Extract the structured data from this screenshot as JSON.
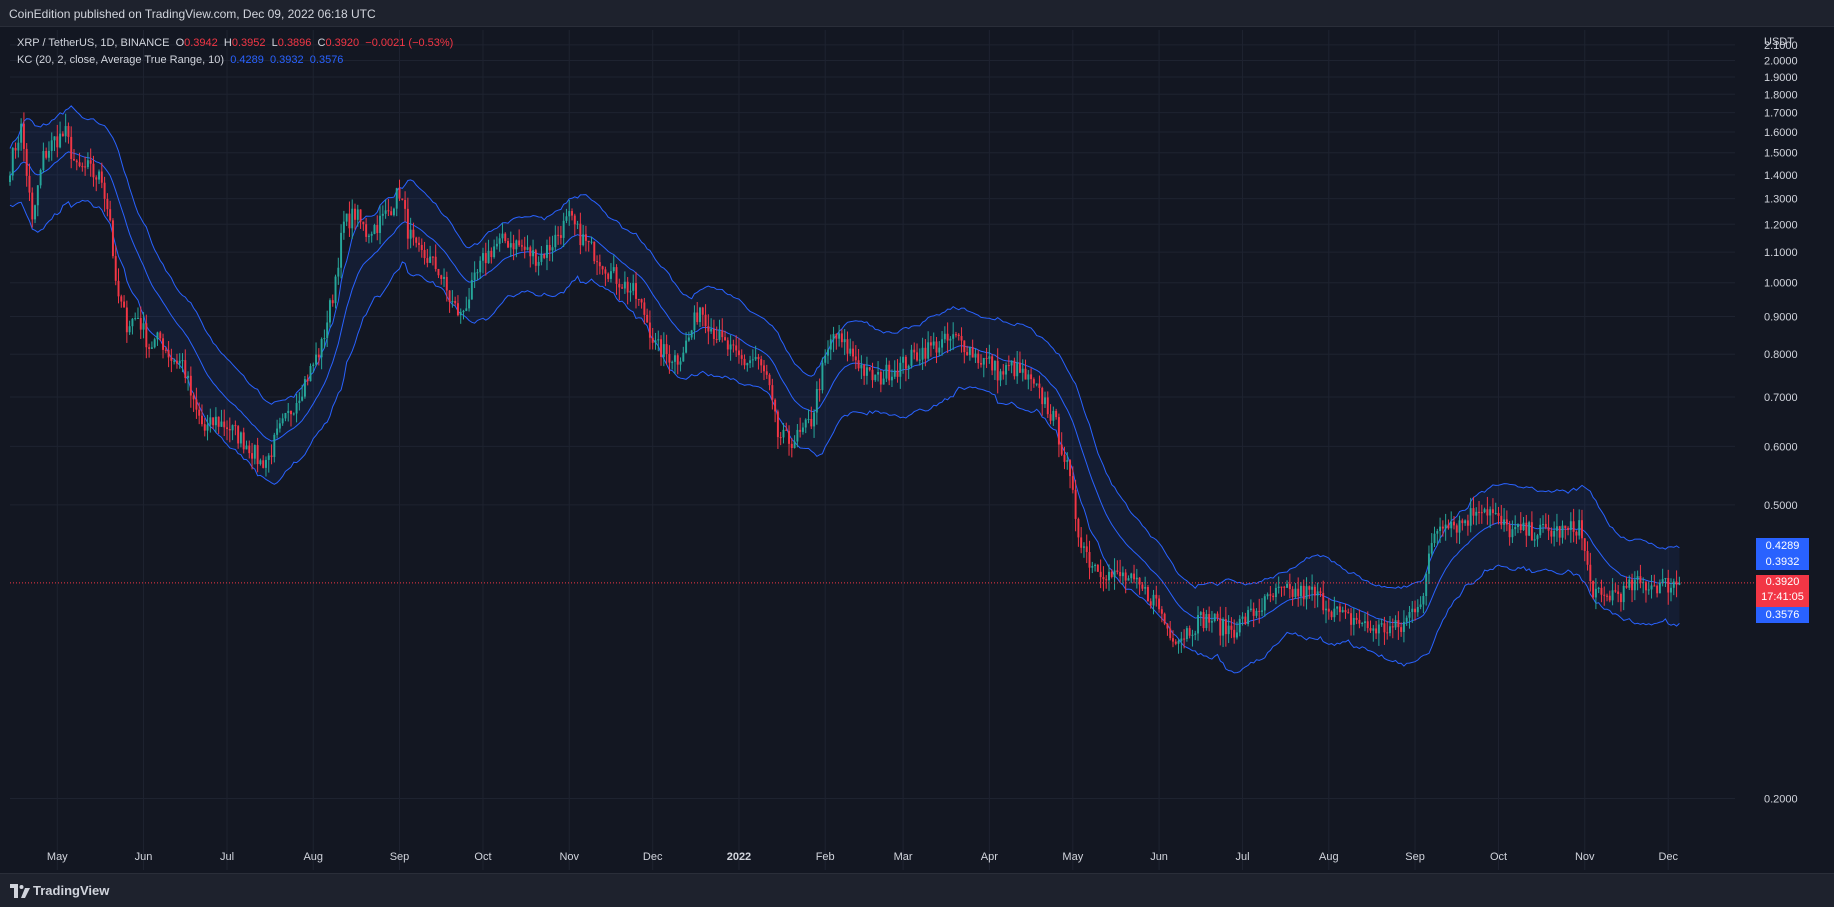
{
  "header": {
    "publisher": "CoinEdition published on TradingView.com, Dec 09, 2022 06:18 UTC"
  },
  "legend": {
    "symbol": "XRP / TetherUS, 1D, BINANCE",
    "o_label": "O",
    "o_value": "0.3942",
    "h_label": "H",
    "h_value": "0.3952",
    "l_label": "L",
    "l_value": "0.3896",
    "c_label": "C",
    "c_value": "0.3920",
    "change": "−0.0021 (−0.53%)",
    "indicator": "KC (20, 2, close, Average True Range, 10)",
    "kc_upper": "0.4289",
    "kc_basis": "0.3932",
    "kc_lower": "0.3576"
  },
  "price_badges": {
    "upper": "0.4289",
    "basis": "0.3932",
    "last": "0.3920",
    "countdown": "17:41:05",
    "lower": "0.3576"
  },
  "footer": {
    "brand": "TradingView"
  },
  "colors": {
    "up": "#26a69a",
    "down": "#f23645",
    "band": "#2962ff",
    "background": "#131722",
    "grid": "#1e2330"
  },
  "chart_data": {
    "type": "candlestick",
    "symbol": "XRP / TetherUS",
    "timeframe": "1D",
    "exchange": "BINANCE",
    "currency_label": "USDT",
    "y_ticks": [
      "0.2000",
      "0.5000",
      "0.6000",
      "0.7000",
      "0.8000",
      "0.9000",
      "1.0000",
      "1.1000",
      "1.2000",
      "1.3000",
      "1.4000",
      "1.5000",
      "1.6000",
      "1.7000",
      "1.8000",
      "1.9000",
      "2.0000",
      "2.1000"
    ],
    "y_tick_values": [
      0.2,
      0.5,
      0.6,
      0.7,
      0.8,
      0.9,
      1.0,
      1.1,
      1.2,
      1.3,
      1.4,
      1.5,
      1.6,
      1.7,
      1.8,
      1.9,
      2.0,
      2.1
    ],
    "ylim": [
      0.16,
      2.2
    ],
    "x_labels": [
      "May",
      "Jun",
      "Jul",
      "Aug",
      "Sep",
      "Oct",
      "Nov",
      "Dec",
      "2022",
      "Feb",
      "Mar",
      "Apr",
      "May",
      "Jun",
      "Jul",
      "Aug",
      "Sep",
      "Oct",
      "Nov",
      "Dec"
    ],
    "x_label_days": [
      17,
      48,
      78,
      109,
      140,
      170,
      201,
      231,
      262,
      293,
      321,
      352,
      382,
      413,
      443,
      474,
      505,
      535,
      566,
      596
    ],
    "total_days": 620,
    "last_price": 0.392,
    "anchors": [
      [
        0,
        1.44
      ],
      [
        4,
        1.62
      ],
      [
        8,
        1.2
      ],
      [
        12,
        1.48
      ],
      [
        16,
        1.56
      ],
      [
        20,
        1.59
      ],
      [
        24,
        1.42
      ],
      [
        28,
        1.43
      ],
      [
        30,
        1.4
      ],
      [
        33,
        1.38
      ],
      [
        36,
        1.22
      ],
      [
        38,
        0.98
      ],
      [
        42,
        0.88
      ],
      [
        46,
        0.9
      ],
      [
        50,
        0.82
      ],
      [
        54,
        0.84
      ],
      [
        58,
        0.79
      ],
      [
        62,
        0.78
      ],
      [
        66,
        0.68
      ],
      [
        70,
        0.63
      ],
      [
        74,
        0.65
      ],
      [
        78,
        0.64
      ],
      [
        82,
        0.62
      ],
      [
        86,
        0.6
      ],
      [
        90,
        0.57
      ],
      [
        93,
        0.58
      ],
      [
        96,
        0.62
      ],
      [
        100,
        0.66
      ],
      [
        104,
        0.71
      ],
      [
        108,
        0.76
      ],
      [
        112,
        0.82
      ],
      [
        116,
        0.96
      ],
      [
        120,
        1.2
      ],
      [
        124,
        1.24
      ],
      [
        128,
        1.17
      ],
      [
        132,
        1.2
      ],
      [
        136,
        1.25
      ],
      [
        140,
        1.33
      ],
      [
        143,
        1.18
      ],
      [
        146,
        1.1
      ],
      [
        150,
        1.08
      ],
      [
        154,
        1.04
      ],
      [
        158,
        0.95
      ],
      [
        162,
        0.9
      ],
      [
        166,
        0.98
      ],
      [
        170,
        1.07
      ],
      [
        174,
        1.12
      ],
      [
        178,
        1.14
      ],
      [
        182,
        1.13
      ],
      [
        186,
        1.1
      ],
      [
        190,
        1.08
      ],
      [
        194,
        1.12
      ],
      [
        198,
        1.18
      ],
      [
        201,
        1.22
      ],
      [
        204,
        1.17
      ],
      [
        208,
        1.12
      ],
      [
        212,
        1.08
      ],
      [
        216,
        1.03
      ],
      [
        220,
        1.0
      ],
      [
        224,
        0.97
      ],
      [
        228,
        0.91
      ],
      [
        232,
        0.82
      ],
      [
        236,
        0.8
      ],
      [
        240,
        0.79
      ],
      [
        244,
        0.84
      ],
      [
        248,
        0.93
      ],
      [
        252,
        0.87
      ],
      [
        256,
        0.83
      ],
      [
        260,
        0.8
      ],
      [
        264,
        0.78
      ],
      [
        268,
        0.79
      ],
      [
        272,
        0.74
      ],
      [
        276,
        0.62
      ],
      [
        280,
        0.61
      ],
      [
        284,
        0.62
      ],
      [
        288,
        0.65
      ],
      [
        292,
        0.76
      ],
      [
        296,
        0.85
      ],
      [
        300,
        0.82
      ],
      [
        304,
        0.79
      ],
      [
        308,
        0.75
      ],
      [
        312,
        0.74
      ],
      [
        316,
        0.76
      ],
      [
        320,
        0.77
      ],
      [
        324,
        0.79
      ],
      [
        328,
        0.81
      ],
      [
        332,
        0.82
      ],
      [
        336,
        0.83
      ],
      [
        340,
        0.84
      ],
      [
        344,
        0.82
      ],
      [
        348,
        0.79
      ],
      [
        352,
        0.78
      ],
      [
        356,
        0.75
      ],
      [
        360,
        0.77
      ],
      [
        364,
        0.75
      ],
      [
        368,
        0.72
      ],
      [
        372,
        0.69
      ],
      [
        376,
        0.64
      ],
      [
        380,
        0.56
      ],
      [
        384,
        0.46
      ],
      [
        388,
        0.42
      ],
      [
        392,
        0.41
      ],
      [
        396,
        0.4
      ],
      [
        400,
        0.4
      ],
      [
        404,
        0.39
      ],
      [
        408,
        0.38
      ],
      [
        412,
        0.37
      ],
      [
        416,
        0.34
      ],
      [
        420,
        0.33
      ],
      [
        424,
        0.34
      ],
      [
        428,
        0.35
      ],
      [
        432,
        0.35
      ],
      [
        436,
        0.34
      ],
      [
        440,
        0.34
      ],
      [
        444,
        0.35
      ],
      [
        448,
        0.36
      ],
      [
        452,
        0.37
      ],
      [
        456,
        0.38
      ],
      [
        460,
        0.38
      ],
      [
        464,
        0.38
      ],
      [
        468,
        0.38
      ],
      [
        472,
        0.37
      ],
      [
        476,
        0.36
      ],
      [
        480,
        0.35
      ],
      [
        484,
        0.35
      ],
      [
        488,
        0.34
      ],
      [
        492,
        0.34
      ],
      [
        496,
        0.34
      ],
      [
        500,
        0.34
      ],
      [
        504,
        0.36
      ],
      [
        508,
        0.38
      ],
      [
        512,
        0.46
      ],
      [
        516,
        0.48
      ],
      [
        520,
        0.47
      ],
      [
        524,
        0.48
      ],
      [
        528,
        0.5
      ],
      [
        532,
        0.49
      ],
      [
        536,
        0.47
      ],
      [
        540,
        0.46
      ],
      [
        544,
        0.46
      ],
      [
        548,
        0.46
      ],
      [
        552,
        0.46
      ],
      [
        556,
        0.46
      ],
      [
        560,
        0.46
      ],
      [
        564,
        0.47
      ],
      [
        568,
        0.39
      ],
      [
        572,
        0.37
      ],
      [
        576,
        0.38
      ],
      [
        580,
        0.38
      ],
      [
        584,
        0.39
      ],
      [
        588,
        0.39
      ],
      [
        592,
        0.39
      ],
      [
        596,
        0.39
      ],
      [
        600,
        0.392
      ]
    ]
  }
}
